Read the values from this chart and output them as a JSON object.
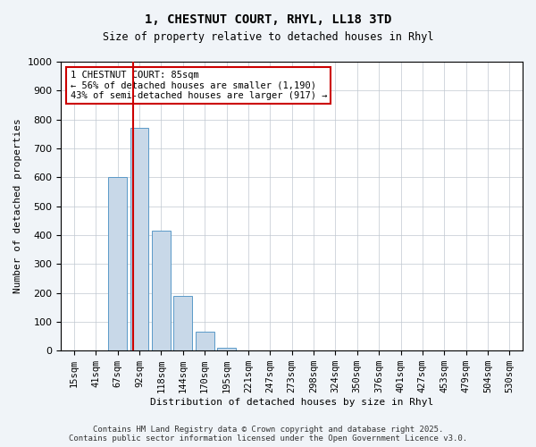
{
  "title_line1": "1, CHESTNUT COURT, RHYL, LL18 3TD",
  "title_line2": "Size of property relative to detached houses in Rhyl",
  "xlabel": "Distribution of detached houses by size in Rhyl",
  "ylabel": "Number of detached properties",
  "categories": [
    "15sqm",
    "41sqm",
    "67sqm",
    "92sqm",
    "118sqm",
    "144sqm",
    "170sqm",
    "195sqm",
    "221sqm",
    "247sqm",
    "273sqm",
    "298sqm",
    "324sqm",
    "350sqm",
    "376sqm",
    "401sqm",
    "427sqm",
    "453sqm",
    "479sqm",
    "504sqm",
    "530sqm"
  ],
  "values": [
    0,
    0,
    600,
    770,
    415,
    190,
    65,
    10,
    0,
    0,
    0,
    0,
    0,
    0,
    0,
    0,
    0,
    0,
    0,
    0,
    0
  ],
  "bar_color": "#c8d8e8",
  "bar_edge_color": "#5a9ac8",
  "vline_x_index": 3.15,
  "vline_color": "#cc0000",
  "ylim": [
    0,
    1000
  ],
  "yticks": [
    0,
    100,
    200,
    300,
    400,
    500,
    600,
    700,
    800,
    900,
    1000
  ],
  "annotation_text": "1 CHESTNUT COURT: 85sqm\n← 56% of detached houses are smaller (1,190)\n43% of semi-detached houses are larger (917) →",
  "annotation_box_color": "#cc0000",
  "footer_line1": "Contains HM Land Registry data © Crown copyright and database right 2025.",
  "footer_line2": "Contains public sector information licensed under the Open Government Licence v3.0.",
  "background_color": "#f0f4f8",
  "plot_background_color": "#ffffff"
}
